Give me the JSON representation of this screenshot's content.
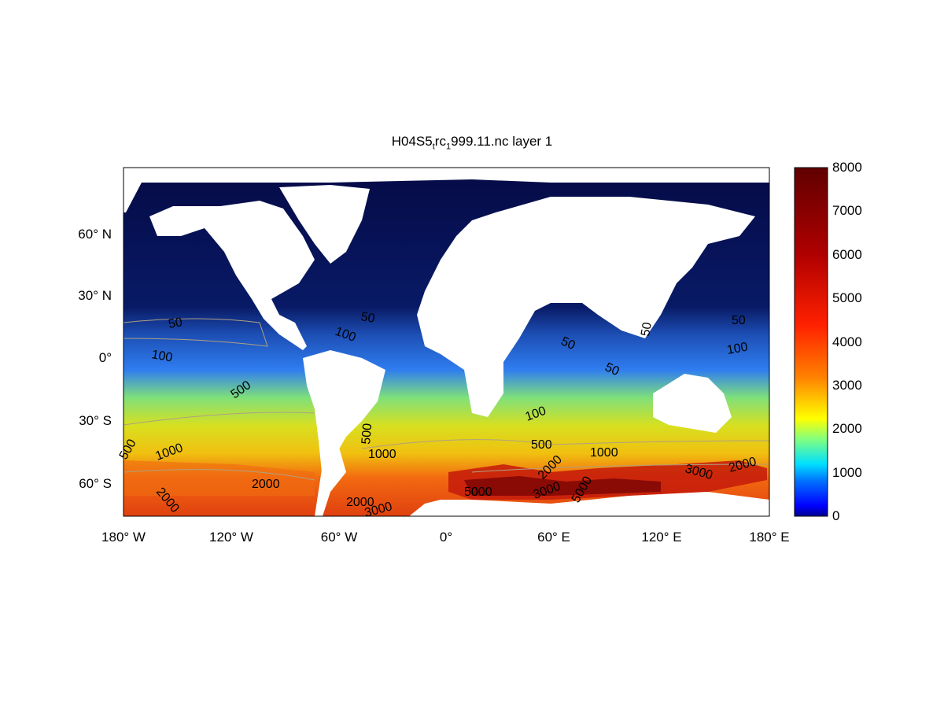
{
  "title": {
    "main": "H04S5",
    "sub1": "t",
    "mid": "rc",
    "sub2": "1",
    "end": "999.11.nc layer 1"
  },
  "chart_data": {
    "type": "heatmap",
    "title": "H04S5_trc_1999.11.nc layer 1",
    "x_ticks": [
      "180° W",
      "120° W",
      "60° W",
      "0°",
      "60° E",
      "120° E",
      "180° E"
    ],
    "y_ticks": [
      "60° N",
      "30° N",
      "0°",
      "30° S",
      "60° S"
    ],
    "xlim": [
      -180,
      180
    ],
    "colorbar": {
      "range": [
        0,
        8000
      ],
      "ticks": [
        "0",
        "1000",
        "2000",
        "3000",
        "4000",
        "5000",
        "6000",
        "7000",
        "8000"
      ],
      "colormap": "jet"
    },
    "contour_levels": [
      50,
      100,
      500,
      1000,
      2000,
      3000,
      5000
    ],
    "contour_labels": [
      "50",
      "100",
      "50",
      "100",
      "50",
      "50",
      "50",
      "50",
      "100",
      "500",
      "500",
      "500",
      "1000",
      "1000",
      "500",
      "1000",
      "100",
      "2000",
      "2000",
      "2000",
      "5000",
      "2000",
      "3000",
      "5000",
      "3000",
      "2000",
      "3000"
    ],
    "land_color": "#ffffff"
  }
}
